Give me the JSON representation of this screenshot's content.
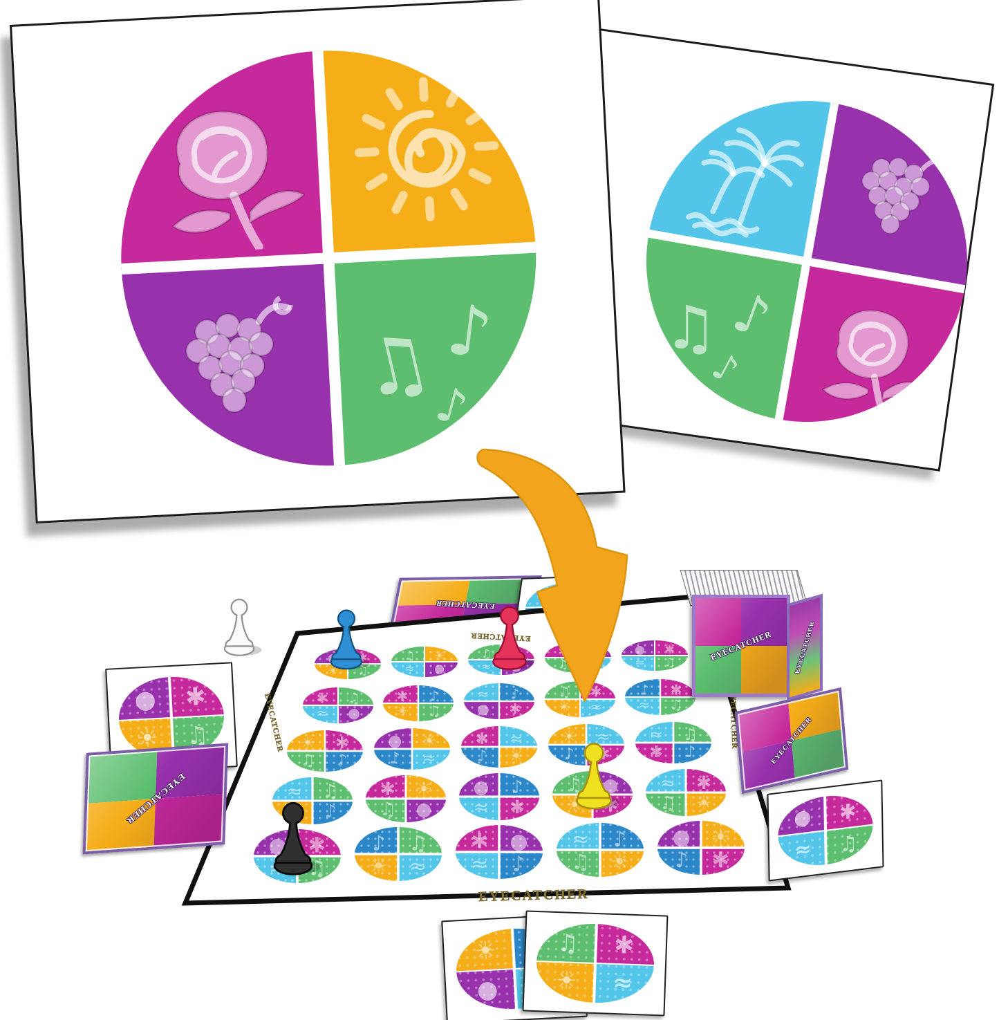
{
  "title": "EYECATCHER",
  "labels": {
    "board_bottom": "EYECATCHER",
    "board_top": "EYECATCHER",
    "board_left": "EYECATCHER",
    "board_right": "EYECATCHER",
    "deck_box_front": "EYECATCHER",
    "deck_box_side": "EYECATCHER",
    "card_back": "EYECATCHER"
  },
  "palette": {
    "M": "#C5299B",
    "P": "#9831AC",
    "G": "#5CBE6E",
    "Y": "#F5AD18",
    "C": "#52C5E9",
    "B": "#2B87C8"
  },
  "color_names": {
    "M": "magenta",
    "P": "purple",
    "G": "green",
    "Y": "yellow-orange",
    "C": "light-blue",
    "B": "blue"
  },
  "glyphs": {
    "M": "✱",
    "P": "●",
    "G": "♫",
    "Y": "☀",
    "C": "≈",
    "B": "♪"
  },
  "symbol_names": [
    "rose",
    "sun",
    "grapes",
    "music-notes",
    "palm-trees"
  ],
  "big_cards": [
    {
      "id": "large",
      "quadrants": [
        [
          "M",
          "rose"
        ],
        [
          "Y",
          "sun"
        ],
        [
          "P",
          "grapes"
        ],
        [
          "G",
          "music"
        ]
      ]
    },
    {
      "id": "small",
      "quadrants": [
        [
          "C",
          "palms"
        ],
        [
          "P",
          "grapes"
        ],
        [
          "G",
          "music"
        ],
        [
          "M",
          "rose"
        ]
      ]
    }
  ],
  "board": {
    "label": "EYECATCHER",
    "rows": 5,
    "cols": 5,
    "grid": [
      [
        [
          "P",
          "M",
          "Y",
          "G"
        ],
        [
          "G",
          "Y",
          "C",
          "P"
        ],
        [
          "G",
          "M",
          "C",
          "P"
        ],
        [
          "M",
          "P",
          "G",
          "C"
        ],
        [
          "P",
          "M",
          "C",
          "G"
        ]
      ],
      [
        [
          "M",
          "G",
          "C",
          "P"
        ],
        [
          "M",
          "B",
          "Y",
          "G"
        ],
        [
          "C",
          "B",
          "P",
          "M"
        ],
        [
          "G",
          "M",
          "Y",
          "C"
        ],
        [
          "B",
          "M",
          "C",
          "G"
        ]
      ],
      [
        [
          "Y",
          "M",
          "G",
          "B"
        ],
        [
          "P",
          "Y",
          "B",
          "C"
        ],
        [
          "M",
          "C",
          "B",
          "Y"
        ],
        [
          "Y",
          "C",
          "B",
          "M"
        ],
        [
          "C",
          "G",
          "M",
          "B"
        ]
      ],
      [
        [
          "C",
          "G",
          "Y",
          "B"
        ],
        [
          "M",
          "Y",
          "G",
          "P"
        ],
        [
          "P",
          "B",
          "C",
          "M"
        ],
        [
          "G",
          "P",
          "Y",
          "M"
        ],
        [
          "C",
          "M",
          "G",
          "Y"
        ]
      ],
      [
        [
          "P",
          "M",
          "C",
          "G"
        ],
        [
          "B",
          "G",
          "Y",
          "C"
        ],
        [
          "M",
          "P",
          "C",
          "B"
        ],
        [
          "C",
          "B",
          "G",
          "Y"
        ],
        [
          "P",
          "Y",
          "B",
          "M"
        ]
      ]
    ]
  },
  "pawns": [
    {
      "color": "white",
      "location": "off board, upper left"
    },
    {
      "color": "blue",
      "location": "row 1, column 1"
    },
    {
      "color": "red",
      "location": "row 1, column 3"
    },
    {
      "color": "yellow",
      "location": "row 4, column 4"
    },
    {
      "color": "black",
      "location": "row 5, column 1"
    }
  ],
  "side_cards": [
    {
      "id": "left-top",
      "kind": "face-up",
      "circle": [
        "P",
        "M",
        "Y",
        "G"
      ]
    },
    {
      "id": "left-bottom",
      "kind": "face-down",
      "back": [
        "G",
        "P",
        "Y",
        "M"
      ]
    },
    {
      "id": "top-center",
      "kind": "face-down",
      "back": [
        "Y",
        "G",
        "M",
        "P"
      ]
    },
    {
      "id": "behind-arrow",
      "kind": "face-up",
      "circle": [
        "C",
        "Y",
        "B",
        "G"
      ]
    },
    {
      "id": "right-top",
      "kind": "face-down",
      "back": [
        "M",
        "Y",
        "P",
        "G"
      ]
    },
    {
      "id": "right-bottom",
      "kind": "face-up",
      "circle": [
        "P",
        "M",
        "C",
        "G"
      ]
    },
    {
      "id": "bottom-left",
      "kind": "face-up",
      "circle": [
        "Y",
        "B",
        "P",
        "C"
      ]
    },
    {
      "id": "bottom-right",
      "kind": "face-up",
      "circle": [
        "G",
        "M",
        "Y",
        "C"
      ]
    }
  ],
  "deck_box": {
    "label": "EYECATCHER",
    "front": [
      "M",
      "P",
      "G",
      "Y"
    ]
  },
  "arrow": {
    "color": "#F2A51C",
    "outline": "#DD9410"
  },
  "board_text_color": "#85712c"
}
